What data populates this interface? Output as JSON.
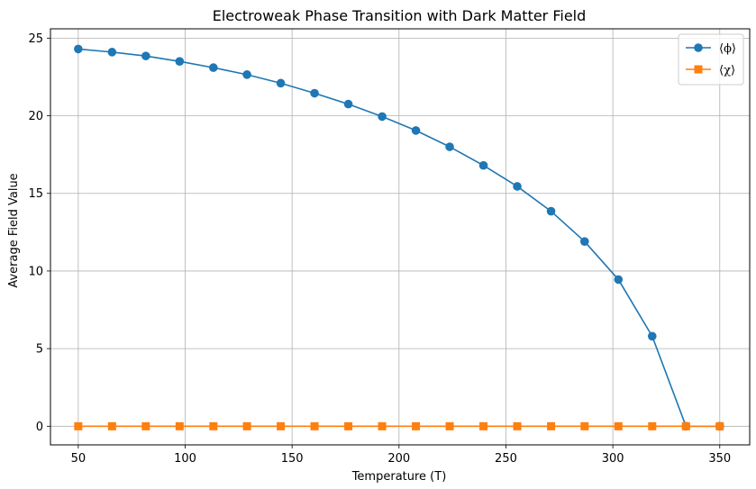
{
  "chart_data": {
    "type": "line",
    "title": "Electroweak Phase Transition with Dark Matter Field",
    "xlabel": "Temperature (T)",
    "ylabel": "Average Field Value",
    "xlim": [
      37,
      364
    ],
    "ylim": [
      -1.2,
      25.6
    ],
    "xticks": [
      50,
      100,
      150,
      200,
      250,
      300,
      350
    ],
    "yticks": [
      0,
      5,
      10,
      15,
      20,
      25
    ],
    "grid": true,
    "legend_position": "top-right",
    "x": [
      50,
      65.8,
      81.6,
      97.4,
      113.2,
      128.9,
      144.7,
      160.5,
      176.3,
      192.1,
      207.9,
      223.7,
      239.5,
      255.3,
      271.1,
      286.8,
      302.6,
      318.4,
      334.2,
      350
    ],
    "series": [
      {
        "name": "⟨ϕ⟩",
        "color": "#1f77b4",
        "marker": "circle",
        "values": [
          24.3,
          24.1,
          23.85,
          23.5,
          23.1,
          22.65,
          22.1,
          21.45,
          20.75,
          19.95,
          19.05,
          18.0,
          16.8,
          15.45,
          13.85,
          11.9,
          9.45,
          5.8,
          0.0,
          0.0
        ]
      },
      {
        "name": "⟨χ⟩",
        "color": "#ff7f0e",
        "marker": "square",
        "values": [
          0,
          0,
          0,
          0,
          0,
          0,
          0,
          0,
          0,
          0,
          0,
          0,
          0,
          0,
          0,
          0,
          0,
          0,
          0,
          0
        ]
      }
    ]
  }
}
